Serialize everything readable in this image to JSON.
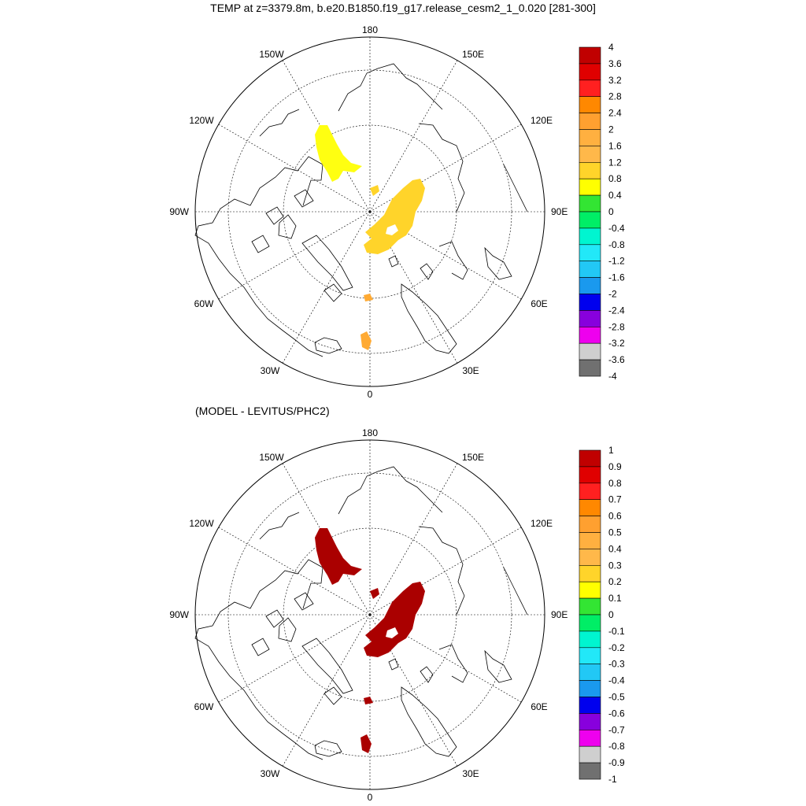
{
  "title": "TEMP at z=3379.8m, b.e20.B1850.f19_g17.release_cesm2_1_0.020 [281-300]",
  "subtitle": "(MODEL - LEVITUS/PHC2)",
  "longitude_labels": {
    "top": "180",
    "bottom": "0",
    "left": "90W",
    "right": "90E",
    "upper_left_outer": "150W",
    "upper_left_inner": "120W",
    "upper_right_outer": "150E",
    "upper_right_inner": "120E",
    "lower_left_inner": "60W",
    "lower_left_outer": "30W",
    "lower_right_inner": "60E",
    "lower_right_outer": "30E"
  },
  "panels": [
    {
      "name": "model-temperature",
      "fill_color": "#FFD42A",
      "small_patch_color": "#FFAA33",
      "colorbar": {
        "labels": [
          "4",
          "3.6",
          "3.2",
          "2.8",
          "2.4",
          "2",
          "1.6",
          "1.2",
          "0.8",
          "0.4",
          "0",
          "-0.4",
          "-0.8",
          "-1.2",
          "-1.6",
          "-2",
          "-2.4",
          "-2.8",
          "-3.2",
          "-3.6",
          "-4"
        ],
        "colors": [
          "#C00000",
          "#E00000",
          "#FF2020",
          "#FF8800",
          "#FFA030",
          "#FFB040",
          "#FFB84A",
          "#FFD42A",
          "#FFFF00",
          "#33E533",
          "#00EE66",
          "#00F5D0",
          "#22E8F8",
          "#22C8F5",
          "#1A99EE",
          "#0000EE",
          "#8800DD",
          "#EE00EE",
          "#CFCFCF",
          "#707070"
        ]
      }
    },
    {
      "name": "model-minus-levitus",
      "fill_color": "#AA0000",
      "small_patch_color": "#AA0000",
      "colorbar": {
        "labels": [
          "1",
          "0.9",
          "0.8",
          "0.7",
          "0.6",
          "0.5",
          "0.4",
          "0.3",
          "0.2",
          "0.1",
          "0",
          "-0.1",
          "-0.2",
          "-0.3",
          "-0.4",
          "-0.5",
          "-0.6",
          "-0.7",
          "-0.8",
          "-0.9",
          "-1"
        ],
        "colors": [
          "#C00000",
          "#E00000",
          "#FF2020",
          "#FF8800",
          "#FFA030",
          "#FFB040",
          "#FFB84A",
          "#FFD42A",
          "#FFFF00",
          "#33E533",
          "#00EE66",
          "#00F5D0",
          "#22E8F8",
          "#22C8F5",
          "#1A99EE",
          "#0000EE",
          "#8800DD",
          "#EE00EE",
          "#CFCFCF",
          "#707070"
        ]
      }
    }
  ]
}
